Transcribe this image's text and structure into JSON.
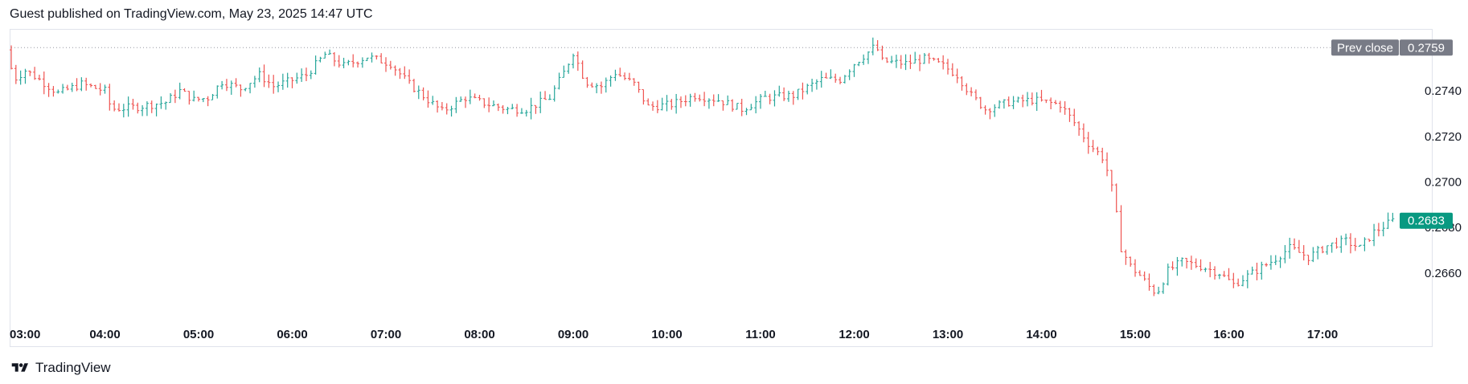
{
  "header": {
    "text": "Guest published on TradingView.com, May 23, 2025 14:47 UTC"
  },
  "footer": {
    "brand": "TradingView"
  },
  "colors": {
    "up": "#26a69a",
    "down": "#ef5350",
    "last_badge": "#089981",
    "prev_badge": "#787b86",
    "grid_border": "#e0e3eb"
  },
  "chart_data": {
    "type": "ohlc",
    "x_tick_labels": [
      "03:00",
      "04:00",
      "05:00",
      "06:00",
      "07:00",
      "08:00",
      "09:00",
      "10:00",
      "11:00",
      "12:00",
      "13:00",
      "14:00",
      "15:00",
      "16:00",
      "17:00"
    ],
    "y_tick_labels": [
      "0.2740",
      "0.2720",
      "0.2700",
      "0.2680",
      "0.2660"
    ],
    "y_ticks": [
      0.274,
      0.272,
      0.27,
      0.268,
      0.266
    ],
    "ylim": [
      0.26388,
      0.27665
    ],
    "prev_close": {
      "label": "Prev close",
      "value": "0.2759",
      "numeric": 0.2759
    },
    "last_price": {
      "value": "0.2683",
      "numeric": 0.2683
    },
    "x_start_hour": 3.0,
    "x_end_hour": 17.8,
    "series_points": [
      {
        "t": 3.0,
        "p": 0.2758
      },
      {
        "t": 3.08,
        "p": 0.2745
      },
      {
        "t": 3.2,
        "p": 0.2749
      },
      {
        "t": 3.35,
        "p": 0.2745
      },
      {
        "t": 3.55,
        "p": 0.2739
      },
      {
        "t": 3.8,
        "p": 0.2743
      },
      {
        "t": 4.05,
        "p": 0.274
      },
      {
        "t": 4.12,
        "p": 0.2732
      },
      {
        "t": 4.4,
        "p": 0.2733
      },
      {
        "t": 4.7,
        "p": 0.2735
      },
      {
        "t": 4.85,
        "p": 0.274
      },
      {
        "t": 5.0,
        "p": 0.2736
      },
      {
        "t": 5.15,
        "p": 0.2737
      },
      {
        "t": 5.3,
        "p": 0.2744
      },
      {
        "t": 5.5,
        "p": 0.2741
      },
      {
        "t": 5.7,
        "p": 0.2747
      },
      {
        "t": 5.85,
        "p": 0.2742
      },
      {
        "t": 6.0,
        "p": 0.2744
      },
      {
        "t": 6.2,
        "p": 0.2747
      },
      {
        "t": 6.4,
        "p": 0.2756
      },
      {
        "t": 6.6,
        "p": 0.2751
      },
      {
        "t": 6.85,
        "p": 0.2755
      },
      {
        "t": 7.1,
        "p": 0.2752
      },
      {
        "t": 7.3,
        "p": 0.2743
      },
      {
        "t": 7.5,
        "p": 0.2736
      },
      {
        "t": 7.65,
        "p": 0.2731
      },
      {
        "t": 7.9,
        "p": 0.2737
      },
      {
        "t": 8.15,
        "p": 0.2734
      },
      {
        "t": 8.35,
        "p": 0.2732
      },
      {
        "t": 8.55,
        "p": 0.2732
      },
      {
        "t": 8.8,
        "p": 0.2737
      },
      {
        "t": 8.95,
        "p": 0.2748
      },
      {
        "t": 9.05,
        "p": 0.2757
      },
      {
        "t": 9.18,
        "p": 0.2744
      },
      {
        "t": 9.35,
        "p": 0.2742
      },
      {
        "t": 9.5,
        "p": 0.2748
      },
      {
        "t": 9.7,
        "p": 0.2743
      },
      {
        "t": 9.85,
        "p": 0.2733
      },
      {
        "t": 10.1,
        "p": 0.2734
      },
      {
        "t": 10.35,
        "p": 0.2738
      },
      {
        "t": 10.6,
        "p": 0.2736
      },
      {
        "t": 10.85,
        "p": 0.2732
      },
      {
        "t": 11.1,
        "p": 0.2737
      },
      {
        "t": 11.4,
        "p": 0.2738
      },
      {
        "t": 11.7,
        "p": 0.2745
      },
      {
        "t": 11.9,
        "p": 0.2745
      },
      {
        "t": 12.05,
        "p": 0.2752
      },
      {
        "t": 12.2,
        "p": 0.2757
      },
      {
        "t": 12.28,
        "p": 0.276
      },
      {
        "t": 12.35,
        "p": 0.2753
      },
      {
        "t": 12.6,
        "p": 0.2752
      },
      {
        "t": 12.8,
        "p": 0.2754
      },
      {
        "t": 13.0,
        "p": 0.2751
      },
      {
        "t": 13.15,
        "p": 0.2747
      },
      {
        "t": 13.3,
        "p": 0.2738
      },
      {
        "t": 13.45,
        "p": 0.2732
      },
      {
        "t": 13.7,
        "p": 0.2735
      },
      {
        "t": 13.95,
        "p": 0.2736
      },
      {
        "t": 14.25,
        "p": 0.2734
      },
      {
        "t": 14.4,
        "p": 0.2726
      },
      {
        "t": 14.55,
        "p": 0.2717
      },
      {
        "t": 14.72,
        "p": 0.271
      },
      {
        "t": 14.82,
        "p": 0.2694
      },
      {
        "t": 14.9,
        "p": 0.2671
      },
      {
        "t": 15.0,
        "p": 0.2663
      },
      {
        "t": 15.1,
        "p": 0.2659
      },
      {
        "t": 15.2,
        "p": 0.2654
      },
      {
        "t": 15.28,
        "p": 0.2651
      },
      {
        "t": 15.4,
        "p": 0.2661
      },
      {
        "t": 15.55,
        "p": 0.2665
      },
      {
        "t": 15.75,
        "p": 0.2663
      },
      {
        "t": 15.95,
        "p": 0.266
      },
      {
        "t": 16.1,
        "p": 0.2655
      },
      {
        "t": 16.3,
        "p": 0.266
      },
      {
        "t": 16.5,
        "p": 0.2665
      },
      {
        "t": 16.7,
        "p": 0.2671
      },
      {
        "t": 16.9,
        "p": 0.2667
      },
      {
        "t": 17.1,
        "p": 0.2672
      },
      {
        "t": 17.3,
        "p": 0.2674
      },
      {
        "t": 17.45,
        "p": 0.2671
      },
      {
        "t": 17.6,
        "p": 0.2678
      },
      {
        "t": 17.8,
        "p": 0.2683
      }
    ]
  }
}
